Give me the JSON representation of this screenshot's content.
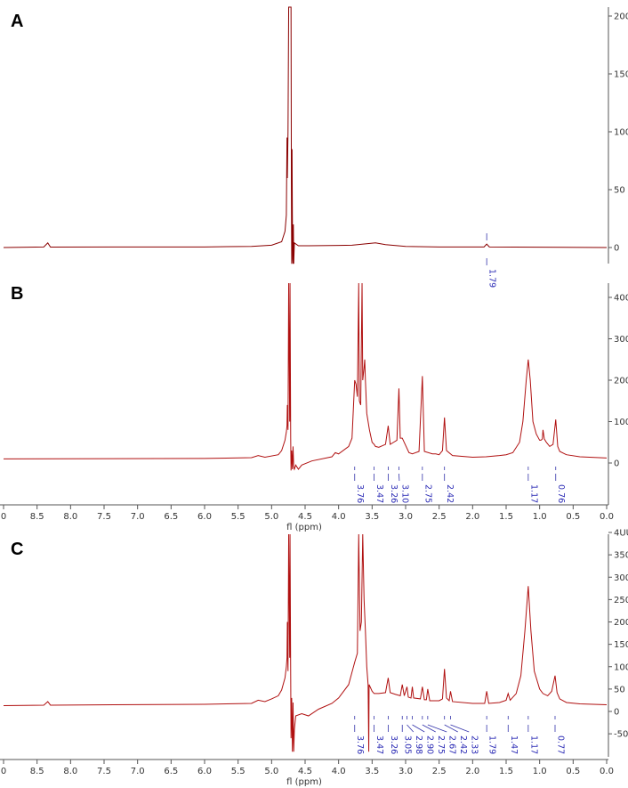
{
  "colors": {
    "spectrum": "#b01010",
    "spectrum_a": "#8a0000",
    "annotation": "#3333aa",
    "axis": "#555555"
  },
  "chart_data": [
    {
      "type": "line",
      "panel": "A",
      "xlabel": "",
      "x_ticks": [],
      "xlim": [
        9.0,
        0.0
      ],
      "y_ticks": [
        0,
        50,
        100,
        150,
        200
      ],
      "ylim": [
        -14,
        215
      ],
      "peak_labels": [
        "1.79"
      ],
      "peak_label_ppm": [
        1.79
      ],
      "series": [
        {
          "points": [
            [
              9.0,
              0
            ],
            [
              8.4,
              0.5
            ],
            [
              8.34,
              4
            ],
            [
              8.3,
              0.4
            ],
            [
              6.0,
              0.5
            ],
            [
              5.3,
              1
            ],
            [
              5.0,
              2
            ],
            [
              4.85,
              5
            ],
            [
              4.8,
              14
            ],
            [
              4.78,
              28
            ],
            [
              4.77,
              95
            ],
            [
              4.765,
              60
            ],
            [
              4.755,
              100
            ],
            [
              4.745,
              215
            ],
            [
              4.735,
              215
            ],
            [
              4.725,
              215
            ],
            [
              4.71,
              215
            ],
            [
              4.705,
              55
            ],
            [
              4.7,
              -14
            ],
            [
              4.695,
              85
            ],
            [
              4.69,
              28
            ],
            [
              4.685,
              -10
            ],
            [
              4.68,
              -14
            ],
            [
              4.675,
              20
            ],
            [
              4.67,
              -14
            ],
            [
              4.66,
              4
            ],
            [
              4.6,
              1.5
            ],
            [
              4.45,
              1.5
            ],
            [
              3.8,
              2
            ],
            [
              3.45,
              4
            ],
            [
              3.3,
              2.5
            ],
            [
              3.0,
              1
            ],
            [
              2.5,
              0.5
            ],
            [
              1.83,
              0.5
            ],
            [
              1.79,
              3
            ],
            [
              1.75,
              0.5
            ],
            [
              0.0,
              0
            ]
          ]
        }
      ]
    },
    {
      "type": "line",
      "panel": "B",
      "xlabel": "fl (ppm)",
      "x_ticks": [
        "0",
        "8.5",
        "8.0",
        "7.5",
        "7.0",
        "6.5",
        "6.0",
        "5.5",
        "5.0",
        "4.5",
        "4.0",
        "3.5",
        "3.0",
        "2.5",
        "2.0",
        "1.5",
        "1.0",
        "0.5",
        "0.0"
      ],
      "x_tick_ppm": [
        9.0,
        8.5,
        8.0,
        7.5,
        7.0,
        6.5,
        6.0,
        5.5,
        5.0,
        4.5,
        4.0,
        3.5,
        3.0,
        2.5,
        2.0,
        1.5,
        1.0,
        0.5,
        0.0
      ],
      "xlim": [
        9.0,
        0.0
      ],
      "y_ticks": [
        0,
        100,
        200,
        300,
        400
      ],
      "ylim": [
        -75,
        440
      ],
      "peak_labels": [
        "3.76",
        "3.47",
        "3.26",
        "3.10",
        "2.75",
        "2.42",
        "1.17",
        "0.76"
      ],
      "peak_label_ppm": [
        3.76,
        3.47,
        3.26,
        3.1,
        2.75,
        2.42,
        1.17,
        0.76
      ],
      "series": [
        {
          "points": [
            [
              9.0,
              10
            ],
            [
              6.0,
              11
            ],
            [
              5.3,
              13
            ],
            [
              5.2,
              18
            ],
            [
              5.1,
              14
            ],
            [
              4.9,
              20
            ],
            [
              4.85,
              30
            ],
            [
              4.8,
              55
            ],
            [
              4.78,
              75
            ],
            [
              4.77,
              90
            ],
            [
              4.765,
              140
            ],
            [
              4.755,
              80
            ],
            [
              4.745,
              440
            ],
            [
              4.73,
              100
            ],
            [
              4.725,
              440
            ],
            [
              4.715,
              60
            ],
            [
              4.71,
              -18
            ],
            [
              4.7,
              30
            ],
            [
              4.69,
              -15
            ],
            [
              4.68,
              40
            ],
            [
              4.67,
              -10
            ],
            [
              4.66,
              -15
            ],
            [
              4.64,
              -5
            ],
            [
              4.6,
              -15
            ],
            [
              4.55,
              -5
            ],
            [
              4.4,
              5
            ],
            [
              4.1,
              15
            ],
            [
              4.05,
              25
            ],
            [
              4.0,
              22
            ],
            [
              3.85,
              40
            ],
            [
              3.8,
              60
            ],
            [
              3.78,
              130
            ],
            [
              3.76,
              200
            ],
            [
              3.74,
              190
            ],
            [
              3.72,
              160
            ],
            [
              3.7,
              440
            ],
            [
              3.69,
              150
            ],
            [
              3.67,
              140
            ],
            [
              3.65,
              440
            ],
            [
              3.64,
              200
            ],
            [
              3.62,
              230
            ],
            [
              3.61,
              250
            ],
            [
              3.6,
              200
            ],
            [
              3.58,
              120
            ],
            [
              3.54,
              80
            ],
            [
              3.5,
              50
            ],
            [
              3.47,
              45
            ],
            [
              3.45,
              40
            ],
            [
              3.4,
              38
            ],
            [
              3.3,
              45
            ],
            [
              3.26,
              90
            ],
            [
              3.23,
              45
            ],
            [
              3.18,
              50
            ],
            [
              3.13,
              55
            ],
            [
              3.1,
              180
            ],
            [
              3.08,
              60
            ],
            [
              3.05,
              60
            ],
            [
              2.95,
              25
            ],
            [
              2.9,
              22
            ],
            [
              2.8,
              28
            ],
            [
              2.75,
              210
            ],
            [
              2.72,
              28
            ],
            [
              2.6,
              22
            ],
            [
              2.55,
              22
            ],
            [
              2.5,
              20
            ],
            [
              2.45,
              30
            ],
            [
              2.42,
              110
            ],
            [
              2.39,
              30
            ],
            [
              2.3,
              18
            ],
            [
              2.0,
              14
            ],
            [
              1.8,
              15
            ],
            [
              1.6,
              18
            ],
            [
              1.5,
              20
            ],
            [
              1.4,
              25
            ],
            [
              1.3,
              50
            ],
            [
              1.25,
              100
            ],
            [
              1.2,
              200
            ],
            [
              1.17,
              250
            ],
            [
              1.14,
              200
            ],
            [
              1.1,
              100
            ],
            [
              1.05,
              70
            ],
            [
              1.0,
              55
            ],
            [
              0.98,
              55
            ],
            [
              0.96,
              58
            ],
            [
              0.95,
              80
            ],
            [
              0.93,
              58
            ],
            [
              0.9,
              50
            ],
            [
              0.85,
              40
            ],
            [
              0.8,
              45
            ],
            [
              0.76,
              105
            ],
            [
              0.73,
              40
            ],
            [
              0.7,
              28
            ],
            [
              0.6,
              20
            ],
            [
              0.4,
              15
            ],
            [
              0.0,
              12
            ]
          ]
        }
      ]
    },
    {
      "type": "line",
      "panel": "C",
      "xlabel": "fl (ppm)",
      "x_ticks": [
        "0",
        "8.5",
        "8.0",
        "7.5",
        "7.0",
        "6.5",
        "6.0",
        "5.5",
        "5.0",
        "4.5",
        "4.0",
        "3.5",
        "3.0",
        "2.5",
        "2.0",
        "1.5",
        "1.0",
        "0.5",
        "0.0"
      ],
      "x_tick_ppm": [
        9.0,
        8.5,
        8.0,
        7.5,
        7.0,
        6.5,
        6.0,
        5.5,
        5.0,
        4.5,
        4.0,
        3.5,
        3.0,
        2.5,
        2.0,
        1.5,
        1.0,
        0.5,
        0.0
      ],
      "xlim": [
        9.0,
        0.0
      ],
      "y_ticks": [
        -50,
        0,
        50,
        100,
        150,
        200,
        250,
        300,
        350,
        400
      ],
      "y_tick_labels": [
        "-50",
        "0",
        "50",
        "100",
        "150",
        "200",
        "250",
        "300",
        "350",
        "4UU"
      ],
      "ylim": [
        -90,
        400
      ],
      "peak_labels": [
        "3.76",
        "3.47",
        "3.26",
        "3.05",
        "2.98",
        "2.90",
        "2.75",
        "2.67",
        "2.42",
        "2.33",
        "1.79",
        "1.47",
        "1.17",
        "0.77"
      ],
      "peak_label_ppm": [
        3.76,
        3.47,
        3.26,
        3.05,
        2.98,
        2.9,
        2.75,
        2.67,
        2.42,
        2.33,
        1.79,
        1.47,
        1.17,
        0.77
      ],
      "series": [
        {
          "points": [
            [
              9.0,
              13
            ],
            [
              8.4,
              14
            ],
            [
              8.34,
              22
            ],
            [
              8.3,
              14
            ],
            [
              6.0,
              16
            ],
            [
              5.3,
              18
            ],
            [
              5.2,
              25
            ],
            [
              5.1,
              22
            ],
            [
              5.0,
              28
            ],
            [
              4.9,
              35
            ],
            [
              4.85,
              48
            ],
            [
              4.8,
              75
            ],
            [
              4.78,
              100
            ],
            [
              4.77,
              120
            ],
            [
              4.765,
              200
            ],
            [
              4.755,
              90
            ],
            [
              4.745,
              400
            ],
            [
              4.73,
              120
            ],
            [
              4.725,
              400
            ],
            [
              4.715,
              80
            ],
            [
              4.71,
              -60
            ],
            [
              4.7,
              30
            ],
            [
              4.69,
              -90
            ],
            [
              4.68,
              20
            ],
            [
              4.67,
              -90
            ],
            [
              4.66,
              -40
            ],
            [
              4.64,
              -10
            ],
            [
              4.55,
              -5
            ],
            [
              4.45,
              -10
            ],
            [
              4.3,
              5
            ],
            [
              4.1,
              18
            ],
            [
              4.0,
              30
            ],
            [
              3.85,
              60
            ],
            [
              3.76,
              110
            ],
            [
              3.72,
              130
            ],
            [
              3.7,
              400
            ],
            [
              3.68,
              180
            ],
            [
              3.66,
              200
            ],
            [
              3.64,
              400
            ],
            [
              3.62,
              250
            ],
            [
              3.6,
              180
            ],
            [
              3.58,
              100
            ],
            [
              3.56,
              60
            ],
            [
              3.55,
              -90
            ],
            [
              3.545,
              60
            ],
            [
              3.5,
              45
            ],
            [
              3.47,
              40
            ],
            [
              3.4,
              40
            ],
            [
              3.3,
              42
            ],
            [
              3.26,
              75
            ],
            [
              3.23,
              42
            ],
            [
              3.15,
              38
            ],
            [
              3.08,
              35
            ],
            [
              3.05,
              60
            ],
            [
              3.02,
              35
            ],
            [
              2.98,
              55
            ],
            [
              2.96,
              32
            ],
            [
              2.92,
              30
            ],
            [
              2.9,
              55
            ],
            [
              2.88,
              30
            ],
            [
              2.78,
              28
            ],
            [
              2.75,
              55
            ],
            [
              2.72,
              26
            ],
            [
              2.69,
              26
            ],
            [
              2.67,
              50
            ],
            [
              2.64,
              24
            ],
            [
              2.5,
              24
            ],
            [
              2.45,
              28
            ],
            [
              2.42,
              95
            ],
            [
              2.39,
              30
            ],
            [
              2.35,
              24
            ],
            [
              2.33,
              45
            ],
            [
              2.3,
              22
            ],
            [
              2.0,
              18
            ],
            [
              1.82,
              18
            ],
            [
              1.79,
              45
            ],
            [
              1.76,
              18
            ],
            [
              1.6,
              20
            ],
            [
              1.5,
              25
            ],
            [
              1.47,
              40
            ],
            [
              1.44,
              25
            ],
            [
              1.35,
              40
            ],
            [
              1.28,
              80
            ],
            [
              1.22,
              180
            ],
            [
              1.17,
              280
            ],
            [
              1.13,
              180
            ],
            [
              1.08,
              90
            ],
            [
              1.0,
              50
            ],
            [
              0.95,
              40
            ],
            [
              0.88,
              35
            ],
            [
              0.82,
              45
            ],
            [
              0.77,
              80
            ],
            [
              0.74,
              42
            ],
            [
              0.7,
              28
            ],
            [
              0.6,
              20
            ],
            [
              0.4,
              17
            ],
            [
              0.0,
              15
            ]
          ]
        }
      ]
    }
  ]
}
